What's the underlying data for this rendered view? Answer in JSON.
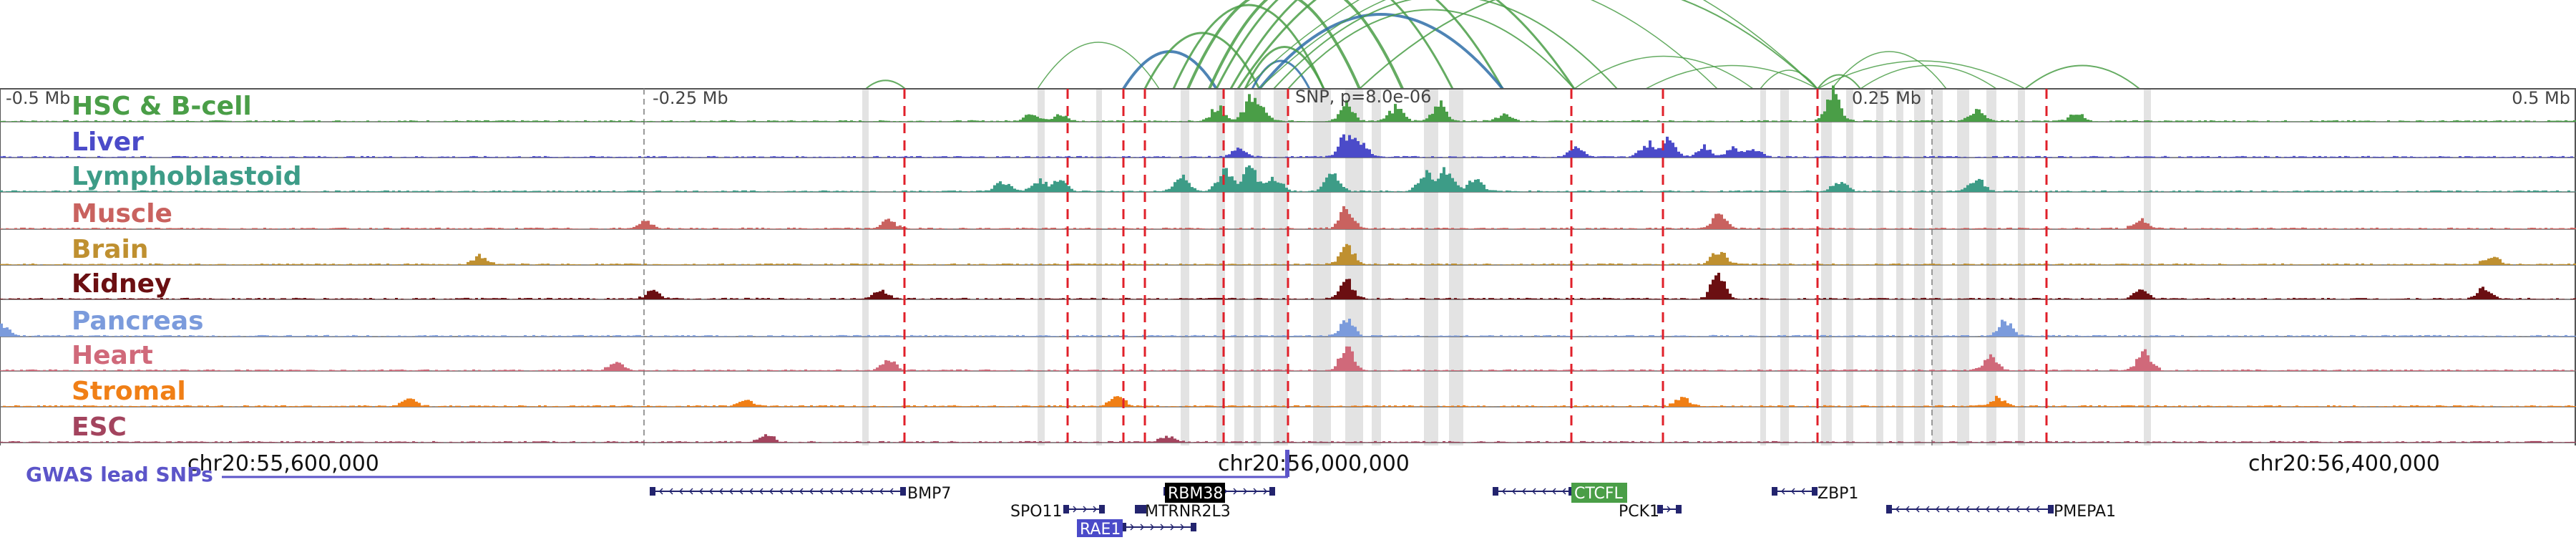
{
  "ruler": {
    "left_label": "-0.5 Mb",
    "mid_left_label": "-0.25 Mb",
    "snp_label": "SNP, p=8.0e-06",
    "mid_right_label": "0.25 Mb",
    "right_label": "0.5 Mb"
  },
  "tracks": [
    {
      "name": "HSC & B-cell",
      "color": "#4a9e47"
    },
    {
      "name": "Liver",
      "color": "#4b4bc9"
    },
    {
      "name": "Lymphoblastoid",
      "color": "#3d9c87"
    },
    {
      "name": "Muscle",
      "color": "#c9625f"
    },
    {
      "name": "Brain",
      "color": "#bf9030"
    },
    {
      "name": "Kidney",
      "color": "#6b0f12"
    },
    {
      "name": "Pancreas",
      "color": "#7b9bdc"
    },
    {
      "name": "Heart",
      "color": "#d0697a"
    },
    {
      "name": "Stromal",
      "color": "#f07f16"
    },
    {
      "name": "ESC",
      "color": "#a3445e"
    }
  ],
  "coordinates": {
    "left": "chr20:55,600,000",
    "center": "chr20:56,000,000",
    "right": "chr20:56,400,000"
  },
  "gwas_label": "GWAS lead SNPs",
  "genes": [
    {
      "name": "BMP7",
      "highlight": false
    },
    {
      "name": "RBM38",
      "highlight": true,
      "badge_color": "#000000"
    },
    {
      "name": "CTCFL",
      "highlight": true,
      "badge_color": "#4a9e47"
    },
    {
      "name": "ZBP1",
      "highlight": false
    },
    {
      "name": "SPO11",
      "highlight": false
    },
    {
      "name": "MTRNR2L3",
      "highlight": false
    },
    {
      "name": "PCK1",
      "highlight": false
    },
    {
      "name": "PMEPA1",
      "highlight": false
    },
    {
      "name": "RAE1",
      "highlight": true,
      "badge_color": "#4b4bc9"
    }
  ],
  "colors": {
    "arc_green": "#4a9e47",
    "arc_blue": "#2f6fa8",
    "red_marker": "#e0202a",
    "gray_band": "#d9d9d9",
    "gwas_line": "#5c55c9"
  }
}
